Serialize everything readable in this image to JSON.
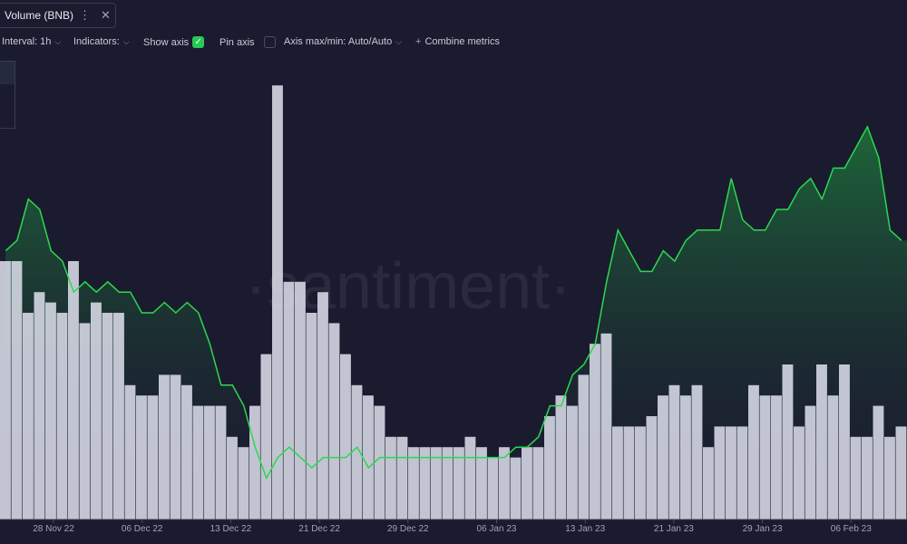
{
  "tab": {
    "title": "Volume (BNB)",
    "menu_icon": "more-vert-icon",
    "close_icon": "close-icon"
  },
  "toolbar": {
    "interval": "Interval: 1h",
    "indicators": "Indicators:",
    "show_axis": "Show axis",
    "show_axis_checked": true,
    "pin_axis": "Pin axis",
    "pin_axis_checked": false,
    "axis_maxmin": "Axis max/min: Auto/Auto",
    "combine": "Combine metrics"
  },
  "watermark": "·santiment·",
  "colors": {
    "background": "#1b1b2f",
    "price_line": "#2bd94f",
    "bars": "#dfe2ee",
    "area_top": "#1d6b3a"
  },
  "chart_data": {
    "type": "bar",
    "x_ticks": [
      "28 Nov 22",
      "06 Dec 22",
      "13 Dec 22",
      "21 Dec 22",
      "29 Dec 22",
      "06 Jan 23",
      "13 Jan 23",
      "21 Jan 23",
      "29 Jan 23",
      "06 Feb 23"
    ],
    "bar_series": {
      "name": "Volume (BNB)",
      "values": [
        25,
        25,
        20,
        22,
        21,
        20,
        25,
        19,
        21,
        20,
        20,
        13,
        12,
        12,
        14,
        14,
        13,
        11,
        11,
        11,
        8,
        7,
        11,
        16,
        42,
        23,
        23,
        20,
        22,
        19,
        16,
        13,
        12,
        11,
        8,
        8,
        7,
        7,
        7,
        7,
        7,
        8,
        7,
        6,
        7,
        6,
        7,
        7,
        10,
        12,
        11,
        14,
        17,
        18,
        9,
        9,
        9,
        10,
        12,
        13,
        12,
        13,
        7,
        9,
        9,
        9,
        13,
        12,
        12,
        15,
        9,
        11,
        15,
        12,
        15,
        8,
        8,
        11,
        8,
        9
      ]
    },
    "line_series": {
      "values": [
        26,
        27,
        31,
        30,
        26,
        25,
        22,
        23,
        22,
        23,
        22,
        22,
        20,
        20,
        21,
        20,
        21,
        20,
        17,
        13,
        13,
        11,
        7,
        4,
        6,
        7,
        6,
        5,
        6,
        6,
        6,
        7,
        5,
        6,
        6,
        6,
        6,
        6,
        6,
        6,
        6,
        6,
        6,
        6,
        6,
        7,
        7,
        8,
        11,
        11,
        14,
        15,
        17,
        23,
        28,
        26,
        24,
        24,
        26,
        25,
        27,
        28,
        28,
        28,
        33,
        29,
        28,
        28,
        30,
        30,
        32,
        33,
        31,
        34,
        34,
        36,
        38,
        35,
        28,
        27
      ]
    }
  }
}
